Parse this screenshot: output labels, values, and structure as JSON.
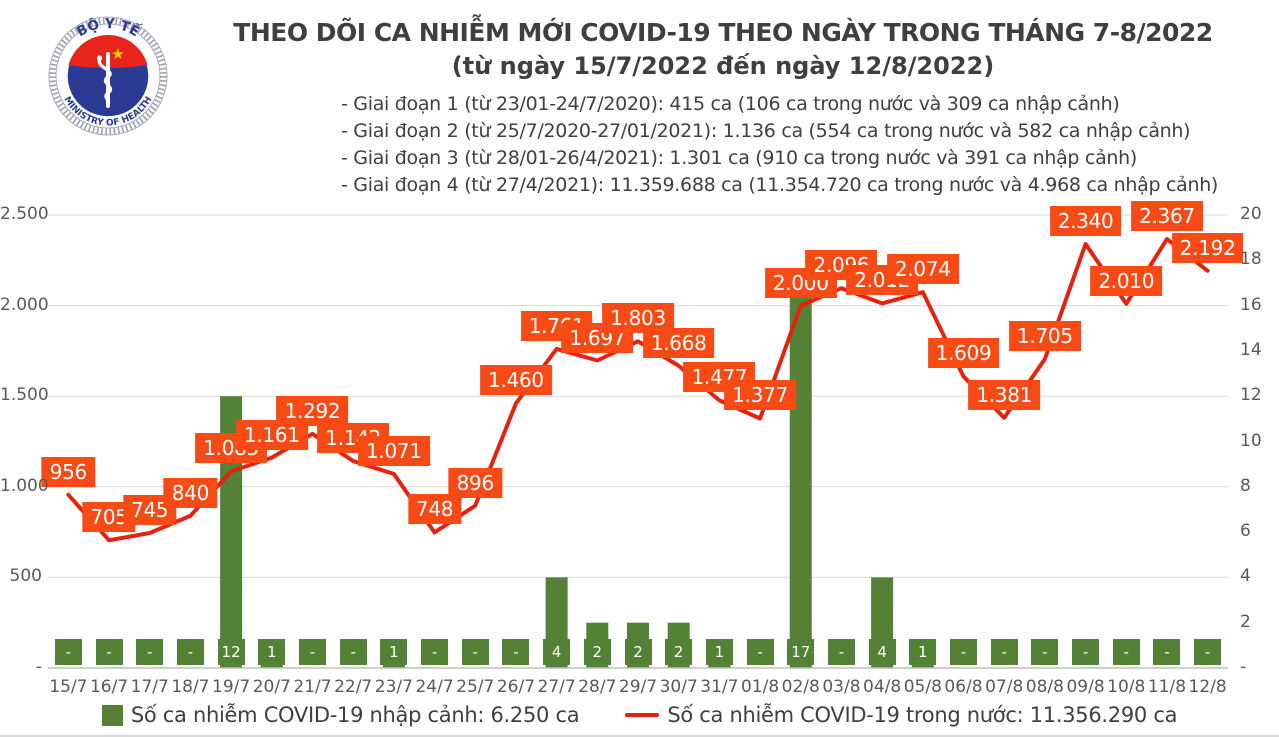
{
  "header": {
    "title": "THEO DÕI CA NHIỄM MỚI COVID-19 THEO NGÀY TRONG THÁNG 7-8/2022",
    "subtitle": "(từ ngày 15/7/2022 đến ngày 12/8/2022)",
    "notes": [
      "- Giai đoạn 1 (từ 23/01-24/7/2020): 415 ca (106 ca trong nước và 309 ca nhập cảnh)",
      "- Giai đoạn 2 (từ 25/7/2020-27/01/2021): 1.136 ca (554 ca trong nước và 582 ca nhập cảnh)",
      "- Giai đoạn 3 (từ 28/01-26/4/2021): 1.301 ca (910 ca trong nước và 391 ca nhập cảnh)",
      "- Giai đoạn 4 (từ 27/4/2021): 11.359.688 ca (11.354.720 ca trong nước và 4.968 ca nhập cảnh)"
    ],
    "logo": {
      "top_text": "BỘ Y TẾ",
      "bottom_text": "MINISTRY OF HEALTH"
    }
  },
  "chart_data": {
    "type": "bar+line",
    "categories": [
      "15/7",
      "16/7",
      "17/7",
      "18/7",
      "19/7",
      "20/7",
      "21/7",
      "22/7",
      "23/7",
      "24/7",
      "25/7",
      "26/7",
      "27/7",
      "28/7",
      "29/7",
      "30/7",
      "31/7",
      "01/8",
      "02/8",
      "03/8",
      "04/8",
      "05/8",
      "06/8",
      "07/8",
      "08/8",
      "09/8",
      "10/8",
      "11/8",
      "12/8"
    ],
    "series": [
      {
        "name": "Số ca nhiễm COVID-19 nhập cảnh",
        "type": "bar",
        "axis": "right",
        "values": [
          0,
          0,
          0,
          0,
          12,
          1,
          0,
          0,
          1,
          0,
          0,
          0,
          4,
          2,
          2,
          2,
          1,
          0,
          17,
          0,
          4,
          1,
          0,
          0,
          0,
          0,
          0,
          0,
          0
        ],
        "labels": [
          "-",
          "-",
          "-",
          "-",
          "12",
          "1",
          "-",
          "-",
          "1",
          "-",
          "-",
          "-",
          "4",
          "2",
          "2",
          "2",
          "1",
          "-",
          "17",
          "-",
          "4",
          "1",
          "-",
          "-",
          "-",
          "-",
          "-",
          "-",
          "-"
        ]
      },
      {
        "name": "Số ca nhiễm COVID-19 trong nước",
        "type": "line",
        "axis": "left",
        "values": [
          956,
          705,
          745,
          840,
          1085,
          1161,
          1292,
          1142,
          1071,
          748,
          896,
          1460,
          1761,
          1697,
          1803,
          1668,
          1477,
          1377,
          2000,
          2096,
          2012,
          2074,
          1609,
          1381,
          1705,
          2340,
          2010,
          2367,
          2192
        ],
        "labels": [
          "956",
          "705",
          "745",
          "840",
          "1.085",
          "1.161",
          "1.292",
          "1.142",
          "1.071",
          "748",
          "896",
          "1.460",
          "1.761",
          "1.697",
          "1.803",
          "1.668",
          "1.477",
          "1.377",
          "2.000",
          "2.096",
          "2.012",
          "2.074",
          "1.609",
          "1.381",
          "1.705",
          "2.340",
          "2.010",
          "2.367",
          "2.192"
        ]
      }
    ],
    "left_axis": {
      "min": 0,
      "max": 2500,
      "ticks": [
        "2.500",
        "2.000",
        "1.500",
        "1.000",
        "500",
        "-"
      ]
    },
    "right_axis": {
      "min": 0,
      "max": 20,
      "ticks": [
        "20",
        "18",
        "16",
        "14",
        "12",
        "10",
        "8",
        "6",
        "4",
        "2",
        "-"
      ]
    },
    "grid": true,
    "legend": [
      {
        "label": "Số ca nhiễm COVID-19 nhập cảnh: 6.250 ca"
      },
      {
        "label": "Số ca nhiễm COVID-19 trong nước: 11.356.290 ca"
      }
    ],
    "colors": {
      "bar": "#538135",
      "line": "#e6220e",
      "label_bg": "#f84a15",
      "grid": "#d9d9d9",
      "axis_line": "#bfbfbf",
      "text": "#3f3f3f",
      "tick_text": "#595959"
    }
  }
}
